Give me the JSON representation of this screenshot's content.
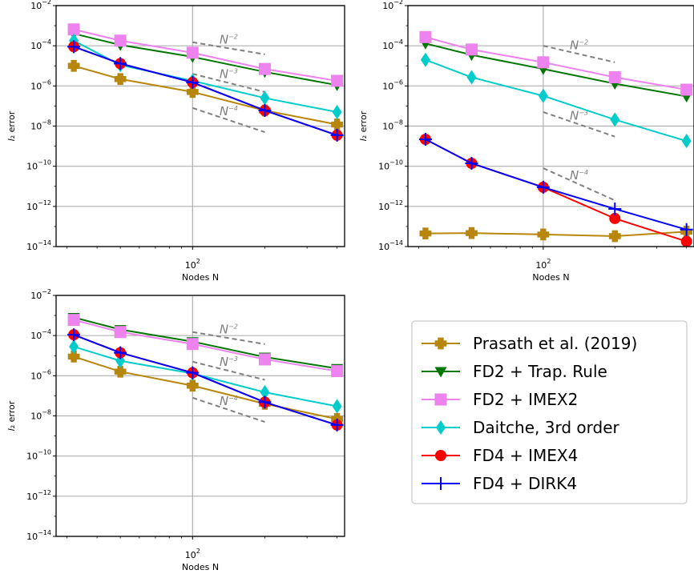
{
  "chart_data": [
    {
      "type": "line",
      "panel": "top-left",
      "xscale": "log",
      "yscale": "log",
      "xlim": [
        27,
        430
      ],
      "ylim": [
        1e-14,
        0.01
      ],
      "xlabel": "Nodes N",
      "ylabel": "l₂ error",
      "x_ticks": [
        {
          "value": 100,
          "base": "10",
          "exp": "2"
        }
      ],
      "y_ticks": [
        {
          "value": 1e-14,
          "base": "10",
          "exp": "−14"
        },
        {
          "value": 1e-12,
          "base": "10",
          "exp": "−12"
        },
        {
          "value": 1e-10,
          "base": "10",
          "exp": "−10"
        },
        {
          "value": 1e-08,
          "base": "10",
          "exp": "−8"
        },
        {
          "value": 1e-06,
          "base": "10",
          "exp": "−6"
        },
        {
          "value": 0.0001,
          "base": "10",
          "exp": "−4"
        },
        {
          "value": 0.01,
          "base": "10",
          "exp": "−2"
        }
      ],
      "grid": true,
      "x": [
        32,
        50,
        100,
        200,
        400
      ],
      "series": [
        {
          "name": "Prasath et al. (2019)",
          "values": [
            1e-05,
            2.2e-06,
            5e-07,
            6e-08,
            1.2e-08
          ]
        },
        {
          "name": "FD2 + Trap. Rule",
          "values": [
            0.0004,
            0.00011,
            2.8e-05,
            5e-06,
            1.1e-06
          ]
        },
        {
          "name": "FD2 + IMEX2",
          "values": [
            0.00065,
            0.00018,
            4.5e-05,
            7e-06,
            1.8e-06
          ]
        },
        {
          "name": "Daitche, 3rd order",
          "values": [
            0.00018,
            1.1e-05,
            1.8e-06,
            2.5e-07,
            5e-08
          ]
        },
        {
          "name": "FD4 + IMEX4",
          "values": [
            9e-05,
            1.3e-05,
            1.5e-06,
            6e-08,
            3.5e-09
          ]
        },
        {
          "name": "FD4 + DIRK4",
          "values": [
            9e-05,
            1.3e-05,
            1.5e-06,
            6e-08,
            3.5e-09
          ]
        }
      ],
      "reference_lines": [
        {
          "label": "N",
          "exp": "−2",
          "x": [
            100,
            200
          ],
          "y": [
            0.00015,
            3.75e-05
          ]
        },
        {
          "label": "N",
          "exp": "−3",
          "x": [
            100,
            200
          ],
          "y": [
            4e-06,
            5e-07
          ]
        },
        {
          "label": "N",
          "exp": "−4",
          "x": [
            100,
            200
          ],
          "y": [
            8e-08,
            5e-09
          ]
        }
      ]
    },
    {
      "type": "line",
      "panel": "top-right",
      "xscale": "log",
      "yscale": "log",
      "xlim": [
        27,
        430
      ],
      "ylim": [
        1e-14,
        0.01
      ],
      "xlabel": "Nodes N",
      "ylabel": "l₂ error",
      "x_ticks": [
        {
          "value": 100,
          "base": "10",
          "exp": "2"
        }
      ],
      "y_ticks": [
        {
          "value": 1e-14,
          "base": "10",
          "exp": "−14"
        },
        {
          "value": 1e-12,
          "base": "10",
          "exp": "−12"
        },
        {
          "value": 1e-10,
          "base": "10",
          "exp": "−10"
        },
        {
          "value": 1e-08,
          "base": "10",
          "exp": "−8"
        },
        {
          "value": 1e-06,
          "base": "10",
          "exp": "−6"
        },
        {
          "value": 0.0001,
          "base": "10",
          "exp": "−4"
        },
        {
          "value": 0.01,
          "base": "10",
          "exp": "−2"
        }
      ],
      "grid": true,
      "x": [
        32,
        50,
        100,
        200,
        400
      ],
      "series": [
        {
          "name": "Prasath et al. (2019)",
          "values": [
            4.5e-14,
            4.7e-14,
            4e-14,
            3.3e-14,
            5.5e-14
          ]
        },
        {
          "name": "FD2 + Trap. Rule",
          "values": [
            0.00013,
            3.5e-05,
            7e-06,
            1.3e-06,
            3e-07
          ]
        },
        {
          "name": "FD2 + IMEX2",
          "values": [
            0.00027,
            6.5e-05,
            1.5e-05,
            2.7e-06,
            6.5e-07
          ]
        },
        {
          "name": "Daitche, 3rd order",
          "values": [
            2e-05,
            2.7e-06,
            3.2e-07,
            2.1e-08,
            1.8e-09
          ]
        },
        {
          "name": "FD4 + IMEX4",
          "values": [
            2.2e-09,
            1.4e-10,
            9e-12,
            2.5e-13,
            1.8e-14
          ]
        },
        {
          "name": "FD4 + DIRK4",
          "values": [
            2.2e-09,
            1.4e-10,
            9e-12,
            7.5e-13,
            7e-14
          ]
        }
      ],
      "reference_lines": [
        {
          "label": "N",
          "exp": "−2",
          "x": [
            100,
            200
          ],
          "y": [
            0.0001,
            1.5e-05
          ]
        },
        {
          "label": "N",
          "exp": "−3",
          "x": [
            100,
            200
          ],
          "y": [
            5e-08,
            3e-09
          ]
        },
        {
          "label": "N",
          "exp": "−4",
          "x": [
            100,
            200
          ],
          "y": [
            8e-11,
            2e-12
          ]
        }
      ]
    },
    {
      "type": "line",
      "panel": "bottom-left",
      "xscale": "log",
      "yscale": "log",
      "xlim": [
        27,
        430
      ],
      "ylim": [
        1e-14,
        0.01
      ],
      "xlabel": "Nodes N",
      "ylabel": "l₂ error",
      "x_ticks": [
        {
          "value": 100,
          "base": "10",
          "exp": "2"
        }
      ],
      "y_ticks": [
        {
          "value": 1e-14,
          "base": "10",
          "exp": "−14"
        },
        {
          "value": 1e-12,
          "base": "10",
          "exp": "−12"
        },
        {
          "value": 1e-10,
          "base": "10",
          "exp": "−10"
        },
        {
          "value": 1e-08,
          "base": "10",
          "exp": "−8"
        },
        {
          "value": 1e-06,
          "base": "10",
          "exp": "−6"
        },
        {
          "value": 0.0001,
          "base": "10",
          "exp": "−4"
        },
        {
          "value": 0.01,
          "base": "10",
          "exp": "−2"
        }
      ],
      "grid": true,
      "x": [
        32,
        50,
        100,
        200,
        400
      ],
      "series": [
        {
          "name": "Prasath et al. (2019)",
          "values": [
            9e-06,
            1.6e-06,
            3.2e-07,
            4e-08,
            7e-09
          ]
        },
        {
          "name": "FD2 + Trap. Rule",
          "values": [
            0.0008,
            0.0002,
            5e-05,
            8.5e-06,
            2.3e-06
          ]
        },
        {
          "name": "FD2 + IMEX2",
          "values": [
            0.0006,
            0.00015,
            3.8e-05,
            6.5e-06,
            1.7e-06
          ]
        },
        {
          "name": "Daitche, 3rd order",
          "values": [
            2.8e-05,
            5.5e-06,
            1.3e-06,
            1.5e-07,
            3e-08
          ]
        },
        {
          "name": "FD4 + IMEX4",
          "values": [
            0.00011,
            1.4e-05,
            1.4e-06,
            4.8e-08,
            3.5e-09
          ]
        },
        {
          "name": "FD4 + DIRK4",
          "values": [
            0.00011,
            1.4e-05,
            1.4e-06,
            4.8e-08,
            3.5e-09
          ]
        }
      ],
      "reference_lines": [
        {
          "label": "N",
          "exp": "−2",
          "x": [
            100,
            200
          ],
          "y": [
            0.00015,
            3.75e-05
          ]
        },
        {
          "label": "N",
          "exp": "−3",
          "x": [
            100,
            200
          ],
          "y": [
            5e-06,
            6.25e-07
          ]
        },
        {
          "label": "N",
          "exp": "−4",
          "x": [
            100,
            200
          ],
          "y": [
            8e-08,
            5e-09
          ]
        }
      ]
    }
  ],
  "legend": {
    "placement": "bottom-right",
    "entries": [
      {
        "label": "Prasath et al. (2019)",
        "color": "#b8860b",
        "marker": "plus-thick"
      },
      {
        "label": "FD2 + Trap. Rule",
        "color": "#007700",
        "marker": "triangle-down"
      },
      {
        "label": "FD2 + IMEX2",
        "color": "#ee82ee",
        "marker": "square"
      },
      {
        "label": "Daitche, 3rd order",
        "color": "#00cccc",
        "marker": "diamond-thin"
      },
      {
        "label": "FD4 + IMEX4",
        "color": "#ff0000",
        "marker": "circle"
      },
      {
        "label": "FD4 + DIRK4",
        "color": "#0000ff",
        "marker": "plus-thin"
      }
    ]
  },
  "reference_line_color": "#808080"
}
